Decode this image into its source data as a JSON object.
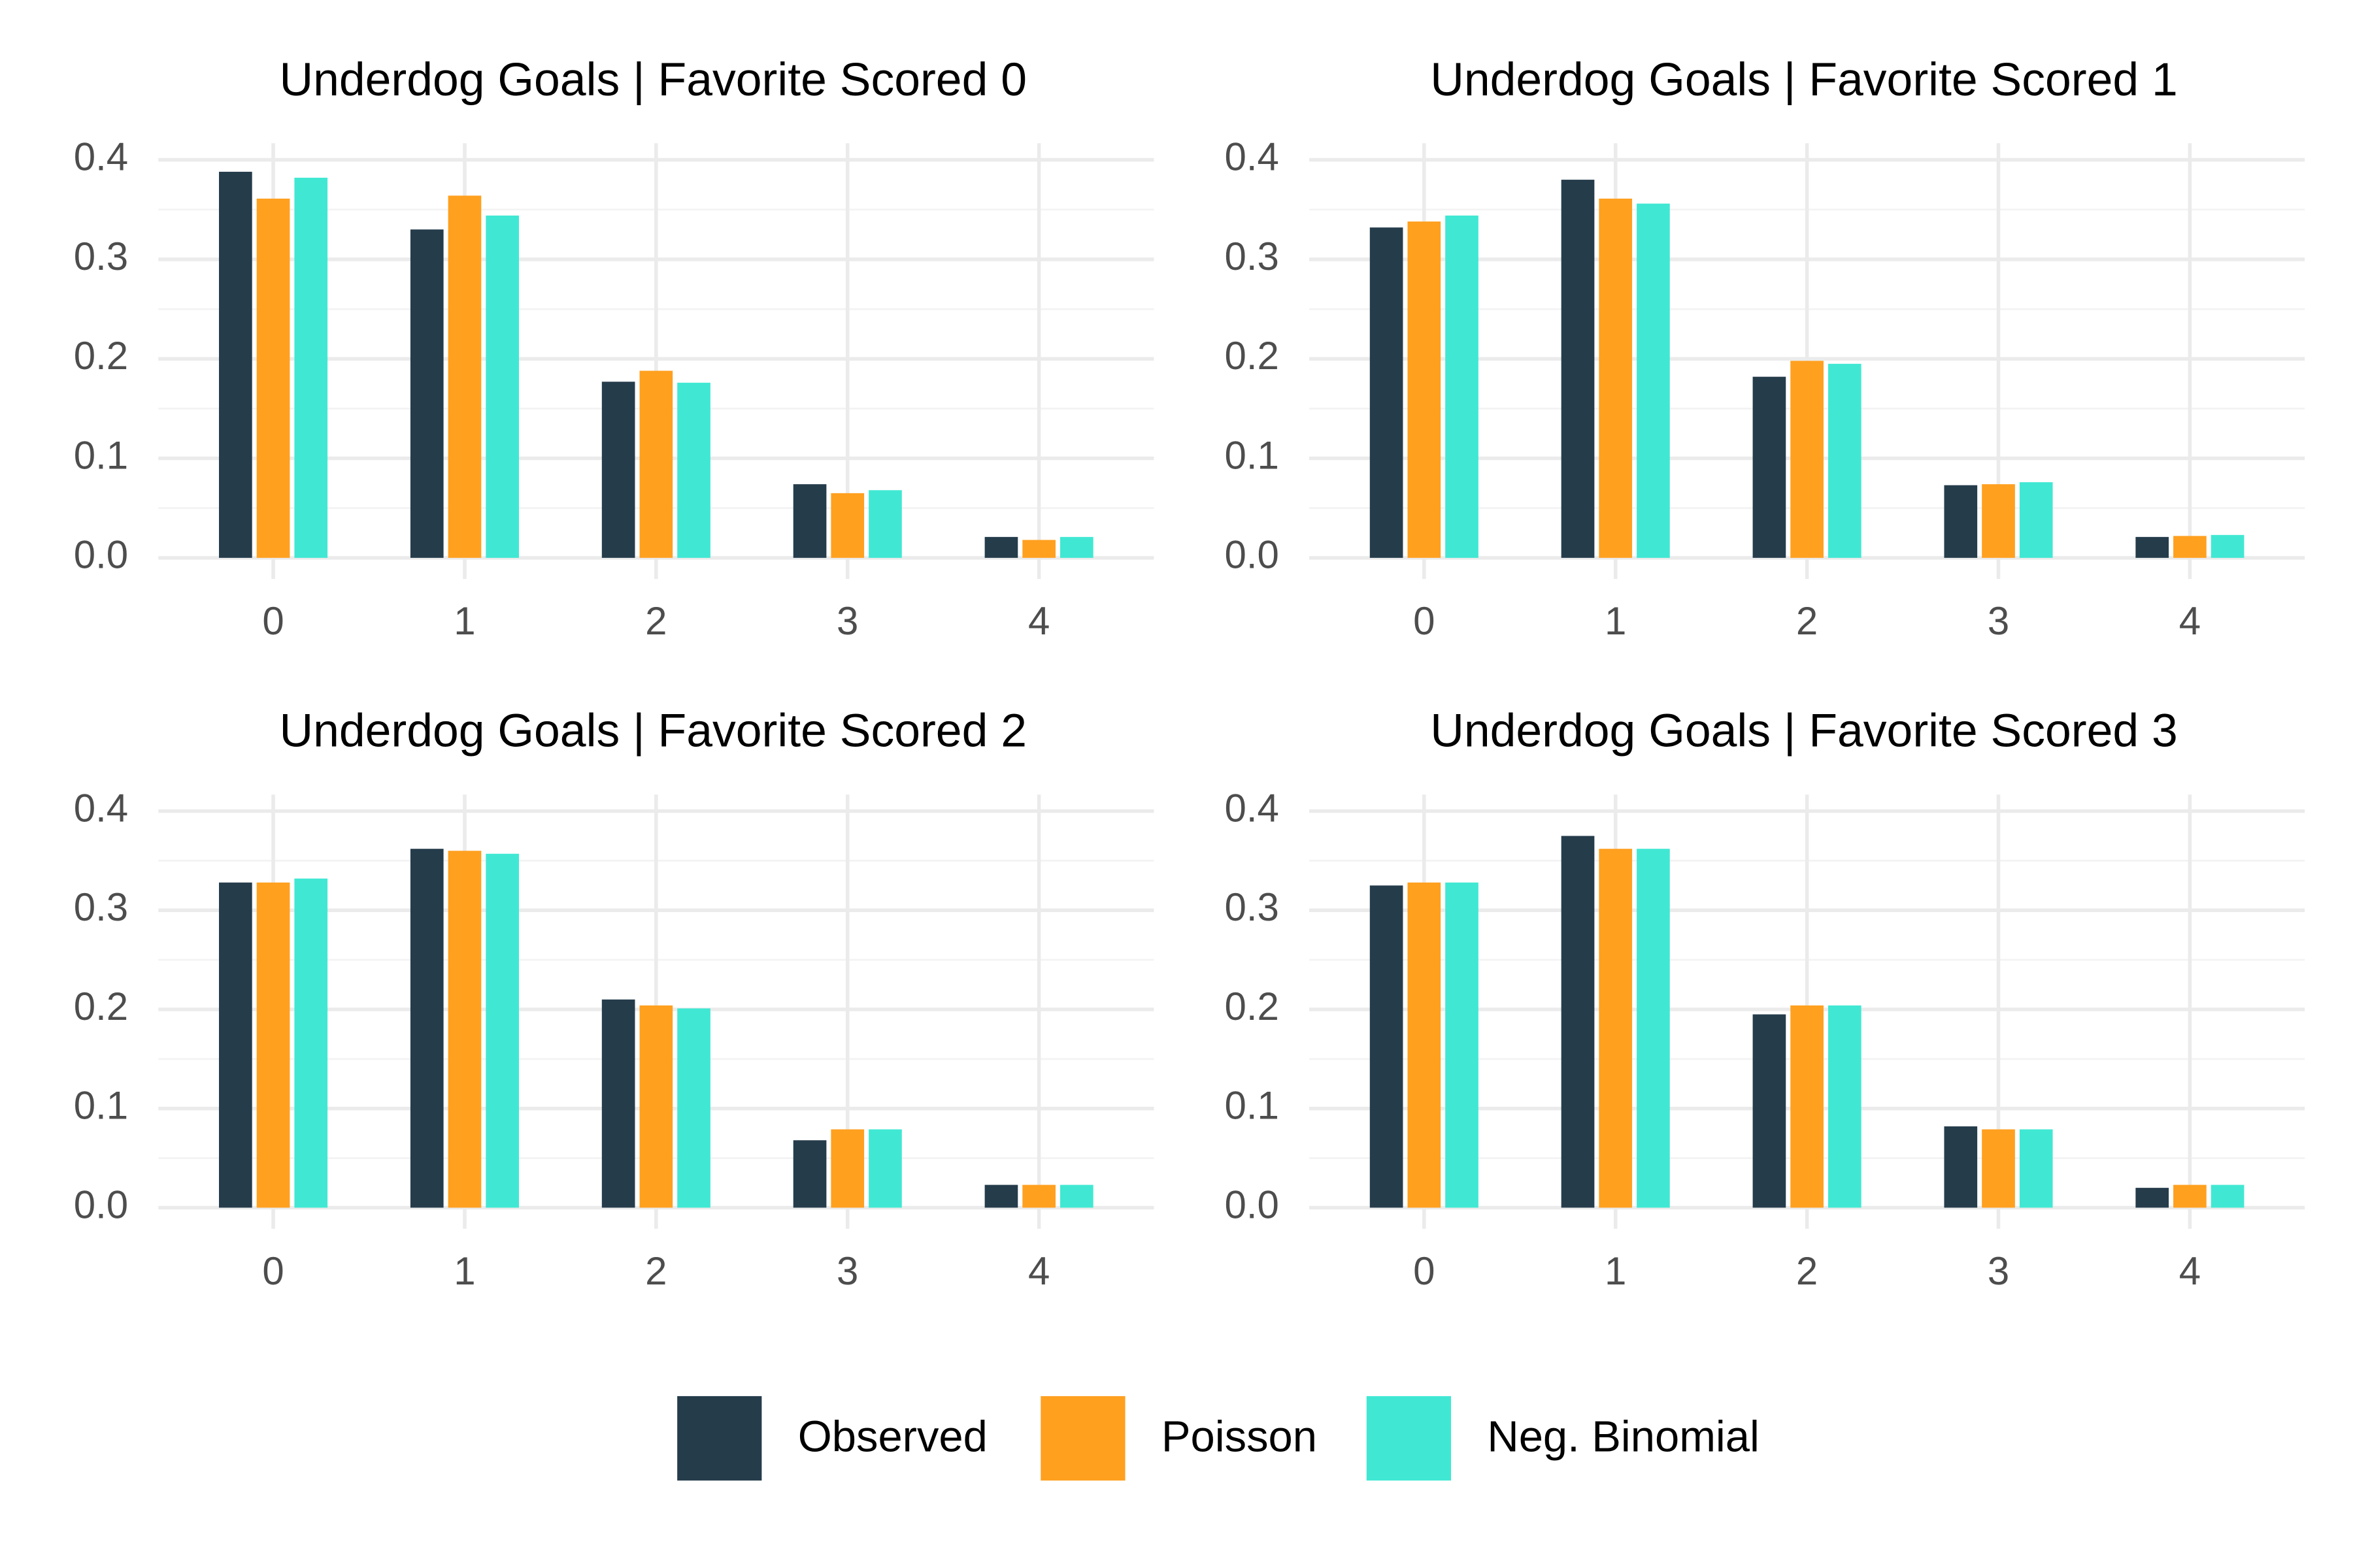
{
  "chart_data": [
    {
      "type": "bar",
      "title": "Underdog Goals | Favorite Scored 0",
      "categories": [
        "0",
        "1",
        "2",
        "3",
        "4"
      ],
      "series": [
        {
          "name": "Observed",
          "color": "#253c4b",
          "values": [
            0.388,
            0.33,
            0.177,
            0.074,
            0.021
          ]
        },
        {
          "name": "Poisson",
          "color": "#ffa01f",
          "values": [
            0.361,
            0.364,
            0.188,
            0.065,
            0.018
          ]
        },
        {
          "name": "Neg. Binomial",
          "color": "#40e8d3",
          "values": [
            0.382,
            0.344,
            0.176,
            0.068,
            0.021
          ]
        }
      ],
      "ylim": [
        0,
        0.4
      ],
      "yticks": [
        {
          "value": 0,
          "label": "0.0"
        },
        0.1,
        0.2,
        0.3,
        0.4
      ],
      "grid": true
    },
    {
      "type": "bar",
      "title": "Underdog Goals | Favorite Scored 1",
      "categories": [
        "0",
        "1",
        "2",
        "3",
        "4"
      ],
      "series": [
        {
          "name": "Observed",
          "color": "#253c4b",
          "values": [
            0.332,
            0.38,
            0.182,
            0.073,
            0.021
          ]
        },
        {
          "name": "Poisson",
          "color": "#ffa01f",
          "values": [
            0.338,
            0.361,
            0.198,
            0.074,
            0.022
          ]
        },
        {
          "name": "Neg. Binomial",
          "color": "#40e8d3",
          "values": [
            0.344,
            0.356,
            0.195,
            0.076,
            0.023
          ]
        }
      ],
      "ylim": [
        0,
        0.4
      ],
      "yticks": [
        {
          "value": 0,
          "label": "0.0"
        },
        0.1,
        0.2,
        0.3,
        0.4
      ],
      "grid": true
    },
    {
      "type": "bar",
      "title": "Underdog Goals | Favorite Scored 2",
      "categories": [
        "0",
        "1",
        "2",
        "3",
        "4"
      ],
      "series": [
        {
          "name": "Observed",
          "color": "#253c4b",
          "values": [
            0.328,
            0.362,
            0.21,
            0.068,
            0.023
          ]
        },
        {
          "name": "Poisson",
          "color": "#ffa01f",
          "values": [
            0.328,
            0.36,
            0.204,
            0.079,
            0.023
          ]
        },
        {
          "name": "Neg. Binomial",
          "color": "#40e8d3",
          "values": [
            0.332,
            0.357,
            0.201,
            0.079,
            0.023
          ]
        }
      ],
      "ylim": [
        0,
        0.4
      ],
      "yticks": [
        {
          "value": 0,
          "label": "0.0"
        },
        0.1,
        0.2,
        0.3,
        0.4
      ],
      "grid": true
    },
    {
      "type": "bar",
      "title": "Underdog Goals | Favorite Scored 3",
      "categories": [
        "0",
        "1",
        "2",
        "3",
        "4"
      ],
      "series": [
        {
          "name": "Observed",
          "color": "#253c4b",
          "values": [
            0.325,
            0.375,
            0.195,
            0.082,
            0.02
          ]
        },
        {
          "name": "Poisson",
          "color": "#ffa01f",
          "values": [
            0.328,
            0.362,
            0.204,
            0.079,
            0.023
          ]
        },
        {
          "name": "Neg. Binomial",
          "color": "#40e8d3",
          "values": [
            0.328,
            0.362,
            0.204,
            0.079,
            0.023
          ]
        }
      ],
      "ylim": [
        0,
        0.4
      ],
      "yticks": [
        {
          "value": 0,
          "label": "0.0"
        },
        0.1,
        0.2,
        0.3,
        0.4
      ],
      "grid": true
    }
  ]
}
